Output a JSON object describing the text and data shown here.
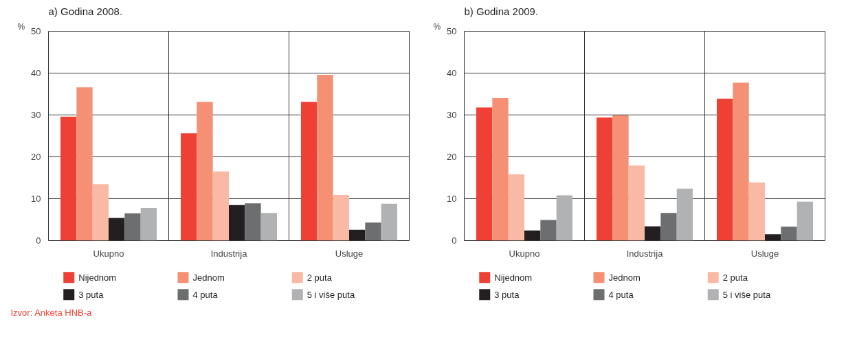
{
  "chart_data": [
    {
      "type": "bar",
      "title": "a) Godina 2008.",
      "ylabel": "%",
      "categories": [
        "Ukupno",
        "Industrija",
        "Usluge"
      ],
      "ylim": [
        0,
        50
      ],
      "yticks": [
        0,
        10,
        20,
        30,
        40,
        50
      ],
      "grid": "y",
      "legend": "bottom",
      "annotations": [
        "Izvor: Anketa HNB-a"
      ],
      "series": [
        {
          "name": "Nijednom",
          "color": "#ee4035",
          "values": [
            29.6,
            25.6,
            33.1
          ]
        },
        {
          "name": "Jednom",
          "color": "#f59074",
          "values": [
            36.6,
            33.1,
            39.6
          ]
        },
        {
          "name": "2 puta",
          "color": "#f9b9a4",
          "values": [
            13.5,
            16.5,
            10.9
          ]
        },
        {
          "name": "3 puta",
          "color": "#231f20",
          "values": [
            5.4,
            8.5,
            2.6
          ]
        },
        {
          "name": "4 puta",
          "color": "#6d6e70",
          "values": [
            6.5,
            8.9,
            4.3
          ]
        },
        {
          "name": "5 i više puta",
          "color": "#b1b2b4",
          "values": [
            7.8,
            6.6,
            8.8
          ]
        }
      ]
    },
    {
      "type": "bar",
      "title": "b) Godina 2009.",
      "ylabel": "%",
      "categories": [
        "Ukupno",
        "Industrija",
        "Usluge"
      ],
      "ylim": [
        0,
        50
      ],
      "yticks": [
        0,
        10,
        20,
        30,
        40,
        50
      ],
      "grid": "y",
      "legend": "bottom",
      "series": [
        {
          "name": "Nijednom",
          "color": "#ee4035",
          "values": [
            31.8,
            29.4,
            33.9
          ]
        },
        {
          "name": "Jednom",
          "color": "#f59074",
          "values": [
            34.0,
            29.9,
            37.7
          ]
        },
        {
          "name": "2 puta",
          "color": "#f9b9a4",
          "values": [
            15.8,
            17.9,
            13.9
          ]
        },
        {
          "name": "3 puta",
          "color": "#231f20",
          "values": [
            2.4,
            3.4,
            1.5
          ]
        },
        {
          "name": "4 puta",
          "color": "#6d6e70",
          "values": [
            4.9,
            6.6,
            3.3
          ]
        },
        {
          "name": "5 i više puta",
          "color": "#b1b2b4",
          "values": [
            10.8,
            12.4,
            9.3
          ]
        }
      ]
    }
  ]
}
